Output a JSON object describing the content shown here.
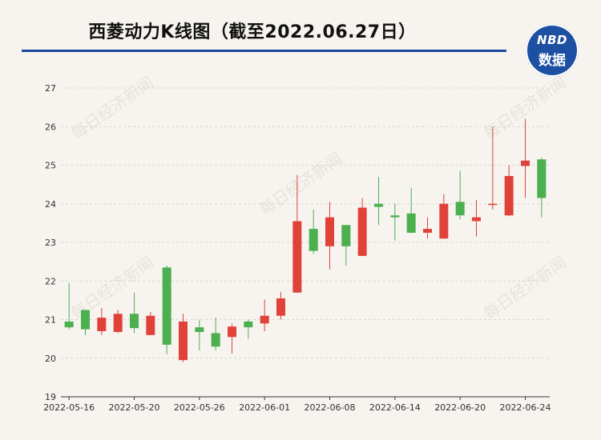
{
  "title": "西菱动力K线图（截至2022.06.27日）",
  "logo": {
    "line1": "NBD",
    "line2": "数据"
  },
  "watermark": "每日经济新闻",
  "colors": {
    "up": "#e0423a",
    "down": "#4caf50",
    "title_rule": "#1c4a9a",
    "logo_bg": "#1d4fa3"
  },
  "chart_data": {
    "type": "candlestick",
    "title": "西菱动力K线图（截至2022.06.27日）",
    "ylim": [
      19,
      27
    ],
    "yticks": [
      19,
      20,
      21,
      22,
      23,
      24,
      25,
      26,
      27
    ],
    "xtick_labels": [
      "2022-05-16",
      "2022-05-20",
      "2022-05-26",
      "2022-06-01",
      "2022-06-08",
      "2022-06-14",
      "2022-06-20",
      "2022-06-24"
    ],
    "xtick_index": [
      0,
      4,
      8,
      12,
      16,
      20,
      24,
      28
    ],
    "candles": [
      {
        "date": "2022-05-16",
        "open": 20.95,
        "close": 20.8,
        "high": 21.95,
        "low": 20.75
      },
      {
        "date": "2022-05-17",
        "open": 21.25,
        "close": 20.75,
        "high": 21.25,
        "low": 20.6
      },
      {
        "date": "2022-05-18",
        "open": 20.7,
        "close": 21.05,
        "high": 21.3,
        "low": 20.6
      },
      {
        "date": "2022-05-19",
        "open": 20.68,
        "close": 21.15,
        "high": 21.25,
        "low": 20.65
      },
      {
        "date": "2022-05-20",
        "open": 21.15,
        "close": 20.78,
        "high": 21.7,
        "low": 20.65
      },
      {
        "date": "2022-05-23",
        "open": 20.6,
        "close": 21.1,
        "high": 21.2,
        "low": 20.6
      },
      {
        "date": "2022-05-24",
        "open": 22.35,
        "close": 20.35,
        "high": 22.4,
        "low": 20.1
      },
      {
        "date": "2022-05-25",
        "open": 19.95,
        "close": 20.95,
        "high": 21.15,
        "low": 19.9
      },
      {
        "date": "2022-05-26",
        "open": 20.8,
        "close": 20.68,
        "high": 21.0,
        "low": 20.2
      },
      {
        "date": "2022-05-27",
        "open": 20.65,
        "close": 20.3,
        "high": 21.05,
        "low": 20.2
      },
      {
        "date": "2022-05-30",
        "open": 20.55,
        "close": 20.82,
        "high": 20.9,
        "low": 20.12
      },
      {
        "date": "2022-05-31",
        "open": 20.95,
        "close": 20.8,
        "high": 21.0,
        "low": 20.5
      },
      {
        "date": "2022-06-01",
        "open": 20.9,
        "close": 21.1,
        "high": 21.52,
        "low": 20.7
      },
      {
        "date": "2022-06-02",
        "open": 21.1,
        "close": 21.55,
        "high": 21.72,
        "low": 21.0
      },
      {
        "date": "2022-06-06",
        "open": 21.7,
        "close": 23.55,
        "high": 24.75,
        "low": 21.7
      },
      {
        "date": "2022-06-07",
        "open": 23.35,
        "close": 22.78,
        "high": 23.85,
        "low": 22.7
      },
      {
        "date": "2022-06-08",
        "open": 22.9,
        "close": 23.65,
        "high": 24.05,
        "low": 22.3
      },
      {
        "date": "2022-06-09",
        "open": 23.45,
        "close": 22.9,
        "high": 23.45,
        "low": 22.4
      },
      {
        "date": "2022-06-10",
        "open": 22.65,
        "close": 23.9,
        "high": 24.15,
        "low": 22.65
      },
      {
        "date": "2022-06-13",
        "open": 24.0,
        "close": 23.92,
        "high": 24.7,
        "low": 23.45
      },
      {
        "date": "2022-06-14",
        "open": 23.7,
        "close": 23.65,
        "high": 24.0,
        "low": 23.05
      },
      {
        "date": "2022-06-15",
        "open": 23.75,
        "close": 23.25,
        "high": 24.42,
        "low": 23.25
      },
      {
        "date": "2022-06-16",
        "open": 23.25,
        "close": 23.35,
        "high": 23.65,
        "low": 23.1
      },
      {
        "date": "2022-06-17",
        "open": 23.1,
        "close": 24.0,
        "high": 24.25,
        "low": 23.1
      },
      {
        "date": "2022-06-20",
        "open": 24.05,
        "close": 23.7,
        "high": 24.85,
        "low": 23.6
      },
      {
        "date": "2022-06-21",
        "open": 23.55,
        "close": 23.65,
        "high": 24.1,
        "low": 23.15
      },
      {
        "date": "2022-06-22",
        "open": 23.98,
        "close": 24.0,
        "high": 26.0,
        "low": 23.85
      },
      {
        "date": "2022-06-23",
        "open": 23.7,
        "close": 24.72,
        "high": 25.0,
        "low": 23.68
      },
      {
        "date": "2022-06-24",
        "open": 24.98,
        "close": 25.12,
        "high": 26.2,
        "low": 24.15
      },
      {
        "date": "2022-06-27",
        "open": 25.15,
        "close": 24.15,
        "high": 25.2,
        "low": 23.65
      }
    ]
  }
}
